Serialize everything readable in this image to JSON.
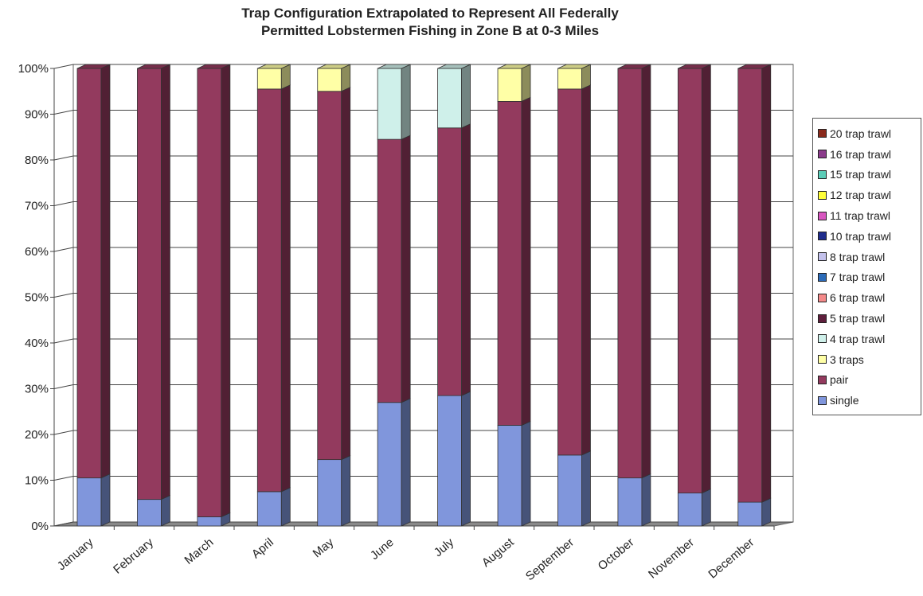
{
  "chart_data": {
    "type": "bar",
    "stacked": true,
    "percent_stacked": true,
    "title": "Trap Configuration Extrapolated to Represent All Federally Permitted Lobstermen Fishing in Zone B at 0-3 Miles",
    "title_lines": [
      "Trap Configuration Extrapolated to Represent All Federally",
      "Permitted Lobstermen Fishing in Zone B at 0-3 Miles"
    ],
    "xlabel": "",
    "ylabel": "",
    "ylim": [
      0,
      100
    ],
    "y_ticks": [
      "0%",
      "10%",
      "20%",
      "30%",
      "40%",
      "50%",
      "60%",
      "70%",
      "80%",
      "90%",
      "100%"
    ],
    "grid": true,
    "legend_position": "right",
    "categories": [
      "January",
      "February",
      "March",
      "April",
      "May",
      "June",
      "July",
      "August",
      "September",
      "October",
      "November",
      "December"
    ],
    "series": [
      {
        "name": "single",
        "color": "#8096DC",
        "values": [
          10.5,
          5.8,
          2.0,
          7.5,
          14.5,
          27.0,
          28.5,
          22.0,
          15.5,
          10.5,
          7.2,
          5.2
        ]
      },
      {
        "name": "pair",
        "color": "#933A5E",
        "values": [
          89.5,
          94.2,
          98.0,
          88.0,
          80.5,
          57.5,
          58.5,
          70.8,
          80.0,
          89.5,
          92.8,
          94.8
        ]
      },
      {
        "name": "3 traps",
        "color": "#FFFFA6",
        "values": [
          0,
          0,
          0,
          4.5,
          5.0,
          0,
          0,
          7.2,
          4.5,
          0,
          0,
          0
        ]
      },
      {
        "name": "4 trap trawl",
        "color": "#CFF0EA",
        "values": [
          0,
          0,
          0,
          0,
          0,
          15.5,
          13.0,
          0,
          0,
          0,
          0,
          0
        ]
      },
      {
        "name": "5 trap trawl",
        "color": "#5E1F3C",
        "values": [
          0,
          0,
          0,
          0,
          0,
          0,
          0,
          0,
          0,
          0,
          0,
          0
        ]
      },
      {
        "name": "6 trap trawl",
        "color": "#F48A8A",
        "values": [
          0,
          0,
          0,
          0,
          0,
          0,
          0,
          0,
          0,
          0,
          0,
          0
        ]
      },
      {
        "name": "7 trap trawl",
        "color": "#2C6BB8",
        "values": [
          0,
          0,
          0,
          0,
          0,
          0,
          0,
          0,
          0,
          0,
          0,
          0
        ]
      },
      {
        "name": "8 trap trawl",
        "color": "#C4C2EC",
        "values": [
          0,
          0,
          0,
          0,
          0,
          0,
          0,
          0,
          0,
          0,
          0,
          0
        ]
      },
      {
        "name": "10 trap trawl",
        "color": "#1F2C8C",
        "values": [
          0,
          0,
          0,
          0,
          0,
          0,
          0,
          0,
          0,
          0,
          0,
          0
        ]
      },
      {
        "name": "11 trap trawl",
        "color": "#D856C0",
        "values": [
          0,
          0,
          0,
          0,
          0,
          0,
          0,
          0,
          0,
          0,
          0,
          0
        ]
      },
      {
        "name": "12 trap trawl",
        "color": "#FFFF3A",
        "values": [
          0,
          0,
          0,
          0,
          0,
          0,
          0,
          0,
          0,
          0,
          0,
          0
        ]
      },
      {
        "name": "15 trap trawl",
        "color": "#5CCDB8",
        "values": [
          0,
          0,
          0,
          0,
          0,
          0,
          0,
          0,
          0,
          0,
          0,
          0
        ]
      },
      {
        "name": "16 trap trawl",
        "color": "#8C3C8C",
        "values": [
          0,
          0,
          0,
          0,
          0,
          0,
          0,
          0,
          0,
          0,
          0,
          0
        ]
      },
      {
        "name": "20 trap trawl",
        "color": "#8A2A1C",
        "values": [
          0,
          0,
          0,
          0,
          0,
          0,
          0,
          0,
          0,
          0,
          0,
          0
        ]
      }
    ],
    "legend_order": [
      "20 trap trawl",
      "16 trap trawl",
      "15 trap trawl",
      "12 trap trawl",
      "11 trap trawl",
      "10 trap trawl",
      "8 trap trawl",
      "7 trap trawl",
      "6 trap trawl",
      "5 trap trawl",
      "4 trap trawl",
      "3 traps",
      "pair",
      "single"
    ]
  }
}
